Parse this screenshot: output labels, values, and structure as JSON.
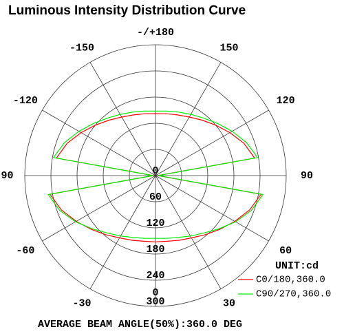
{
  "chart_data": {
    "type": "polar",
    "title": "Luminous Intensity Distribution Curve",
    "x": [
      -180,
      -170,
      -160,
      -150,
      -140,
      -130,
      -120,
      -110,
      -100,
      -90,
      -80,
      -70,
      -60,
      -50,
      -40,
      -30,
      -20,
      -10,
      0,
      10,
      20,
      30,
      40,
      50,
      60,
      70,
      80,
      90,
      100,
      110,
      120,
      130,
      140,
      150,
      160,
      170,
      180
    ],
    "series": [
      {
        "name": "C0/180,360.0",
        "color": "#ff0000",
        "values": [
          142,
          144,
          148,
          155,
          166,
          180,
          197,
          216,
          231,
          5,
          246,
          230,
          210,
          192,
          177,
          165,
          158,
          153,
          152,
          153,
          158,
          165,
          177,
          192,
          210,
          230,
          246,
          5,
          231,
          216,
          197,
          180,
          166,
          155,
          148,
          144,
          142
        ]
      },
      {
        "name": "C90/270,360.0",
        "color": "#00ee00",
        "values": [
          148,
          150,
          155,
          162,
          172,
          186,
          203,
          222,
          238,
          6,
          250,
          234,
          212,
          190,
          172,
          160,
          151,
          146,
          144,
          146,
          151,
          160,
          172,
          190,
          212,
          234,
          250,
          6,
          238,
          222,
          203,
          186,
          172,
          162,
          155,
          150,
          148
        ]
      }
    ],
    "xticks": [
      {
        "value": 180,
        "label": "-/+180"
      },
      150,
      120,
      90,
      60,
      30,
      0,
      -30,
      -60,
      -90,
      -120,
      -150
    ],
    "ylim": [
      0,
      300
    ],
    "yticks": [
      0,
      60,
      120,
      180,
      240,
      300
    ],
    "unit_label": "UNIT:cd",
    "footer": "AVERAGE BEAM ANGLE(50%):360.0 DEG"
  }
}
